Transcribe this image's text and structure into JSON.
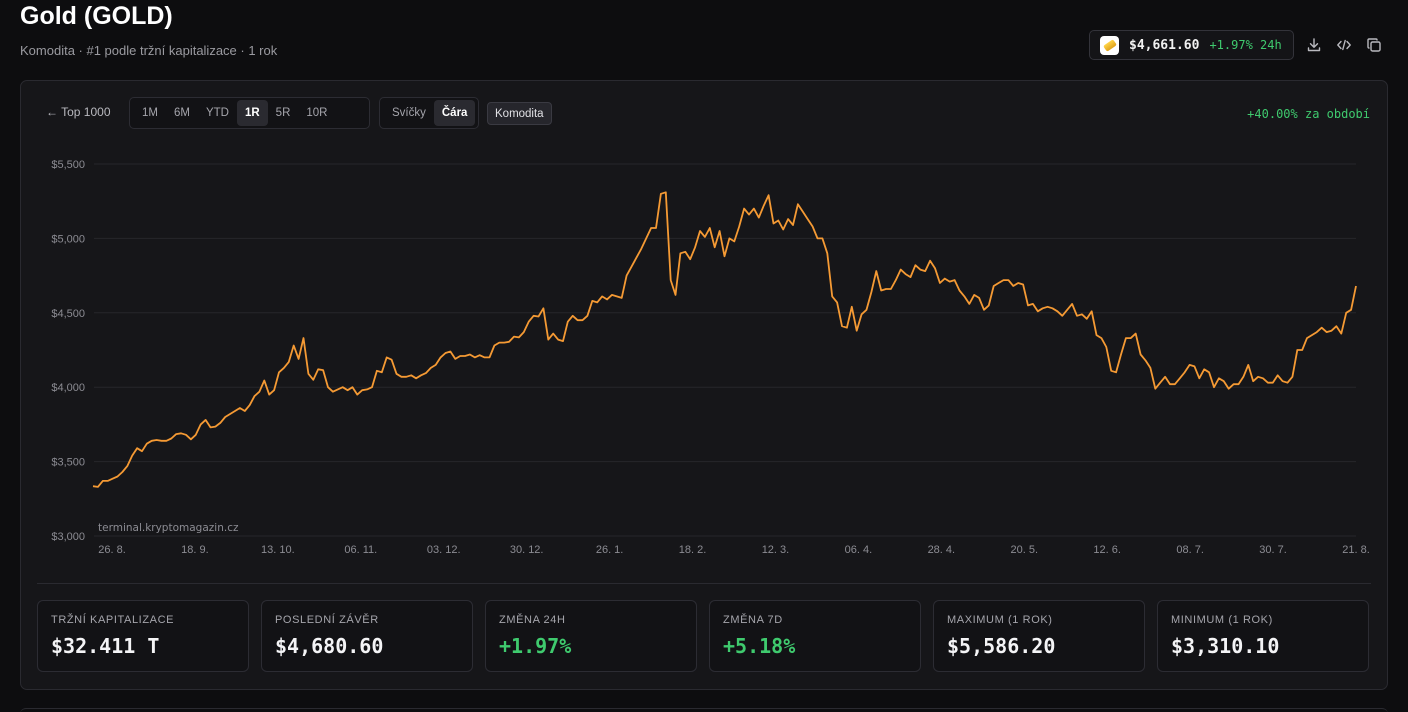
{
  "header": {
    "title": "Gold (GOLD)",
    "subtitle": "Komodita · #1 podle tržní kapitalizace · 1 rok"
  },
  "price_pill": {
    "price": "$4,661.60",
    "change": "+1.97% 24h",
    "icon": "gold-bar-icon"
  },
  "toolbar": {
    "back_label": "← Top 1000",
    "ranges": [
      "1M",
      "6M",
      "YTD",
      "1R",
      "5R",
      "10R"
    ],
    "active_range": "1R",
    "chart_types": [
      "Svíčky",
      "Čára"
    ],
    "active_chart_type": "Čára",
    "category_tag": "Komodita",
    "period_change": "+40.00% za období"
  },
  "stats": [
    {
      "label": "TRŽNÍ KAPITALIZACE",
      "value": "$32.411 T",
      "positive": false
    },
    {
      "label": "POSLEDNÍ ZÁVĚR",
      "value": "$4,680.60",
      "positive": false
    },
    {
      "label": "ZMĚNA 24H",
      "value": "+1.97%",
      "positive": true
    },
    {
      "label": "ZMĚNA 7D",
      "value": "+5.18%",
      "positive": true
    },
    {
      "label": "MAXIMUM (1 ROK)",
      "value": "$5,586.20",
      "positive": false
    },
    {
      "label": "MINIMUM (1 ROK)",
      "value": "$3,310.10",
      "positive": false
    }
  ],
  "colors": {
    "line": "#f59a34",
    "positive": "#3fca6e",
    "grid": "#26262b"
  },
  "chart_data": {
    "type": "line",
    "watermark": "terminal.kryptomagazin.cz",
    "ylim": [
      3000,
      5500
    ],
    "yticks": [
      3000,
      3500,
      4000,
      4500,
      5000,
      5500
    ],
    "ytick_labels": [
      "$3,000",
      "$3,500",
      "$4,000",
      "$4,500",
      "$5,000",
      "$5,500"
    ],
    "xtick_labels": [
      "26. 8.",
      "18. 9.",
      "13. 10.",
      "06. 11.",
      "03. 12.",
      "30. 12.",
      "26. 1.",
      "18. 2.",
      "12. 3.",
      "06. 4.",
      "28. 4.",
      "20. 5.",
      "12. 6.",
      "08. 7.",
      "30. 7.",
      "21. 8."
    ],
    "grid": true,
    "series": [
      {
        "values": [
          3335,
          3330,
          3370,
          3370,
          3385,
          3400,
          3430,
          3470,
          3540,
          3590,
          3570,
          3620,
          3640,
          3645,
          3640,
          3640,
          3655,
          3685,
          3690,
          3680,
          3650,
          3680,
          3750,
          3780,
          3730,
          3735,
          3760,
          3800,
          3820,
          3840,
          3860,
          3840,
          3880,
          3940,
          3970,
          4045,
          3950,
          3980,
          4100,
          4130,
          4170,
          4280,
          4190,
          4330,
          4090,
          4050,
          4120,
          4115,
          4000,
          3970,
          3985,
          4000,
          3980,
          4000,
          3950,
          3980,
          3985,
          4000,
          4110,
          4100,
          4200,
          4185,
          4090,
          4070,
          4070,
          4080,
          4060,
          4080,
          4095,
          4130,
          4150,
          4200,
          4230,
          4240,
          4190,
          4210,
          4210,
          4220,
          4200,
          4215,
          4200,
          4200,
          4280,
          4300,
          4300,
          4305,
          4340,
          4335,
          4370,
          4440,
          4480,
          4475,
          4530,
          4320,
          4360,
          4320,
          4310,
          4440,
          4480,
          4450,
          4450,
          4480,
          4580,
          4570,
          4610,
          4590,
          4620,
          4610,
          4600,
          4750,
          4810,
          4870,
          4930,
          5000,
          5070,
          5070,
          5300,
          5310,
          4720,
          4620,
          4900,
          4910,
          4860,
          4940,
          5050,
          5010,
          5070,
          4940,
          5050,
          4880,
          5000,
          4980,
          5080,
          5200,
          5160,
          5200,
          5140,
          5220,
          5290,
          5100,
          5120,
          5060,
          5130,
          5090,
          5230,
          5180,
          5130,
          5080,
          5000,
          5000,
          4900,
          4610,
          4570,
          4410,
          4400,
          4540,
          4380,
          4490,
          4520,
          4640,
          4780,
          4650,
          4660,
          4660,
          4720,
          4790,
          4760,
          4740,
          4820,
          4790,
          4780,
          4850,
          4800,
          4700,
          4730,
          4710,
          4720,
          4650,
          4610,
          4560,
          4620,
          4600,
          4520,
          4550,
          4680,
          4700,
          4720,
          4720,
          4680,
          4700,
          4690,
          4550,
          4560,
          4510,
          4530,
          4540,
          4530,
          4510,
          4480,
          4520,
          4560,
          4480,
          4490,
          4460,
          4510,
          4350,
          4330,
          4270,
          4110,
          4100,
          4220,
          4330,
          4330,
          4360,
          4220,
          4180,
          4130,
          3990,
          4030,
          4070,
          4020,
          4020,
          4060,
          4100,
          4150,
          4140,
          4060,
          4120,
          4100,
          4000,
          4060,
          4040,
          3990,
          4020,
          4020,
          4070,
          4150,
          4040,
          4070,
          4060,
          4030,
          4030,
          4080,
          4040,
          4030,
          4070,
          4250,
          4250,
          4330,
          4350,
          4370,
          4400,
          4370,
          4380,
          4410,
          4360,
          4500,
          4520,
          4680
        ]
      }
    ]
  }
}
